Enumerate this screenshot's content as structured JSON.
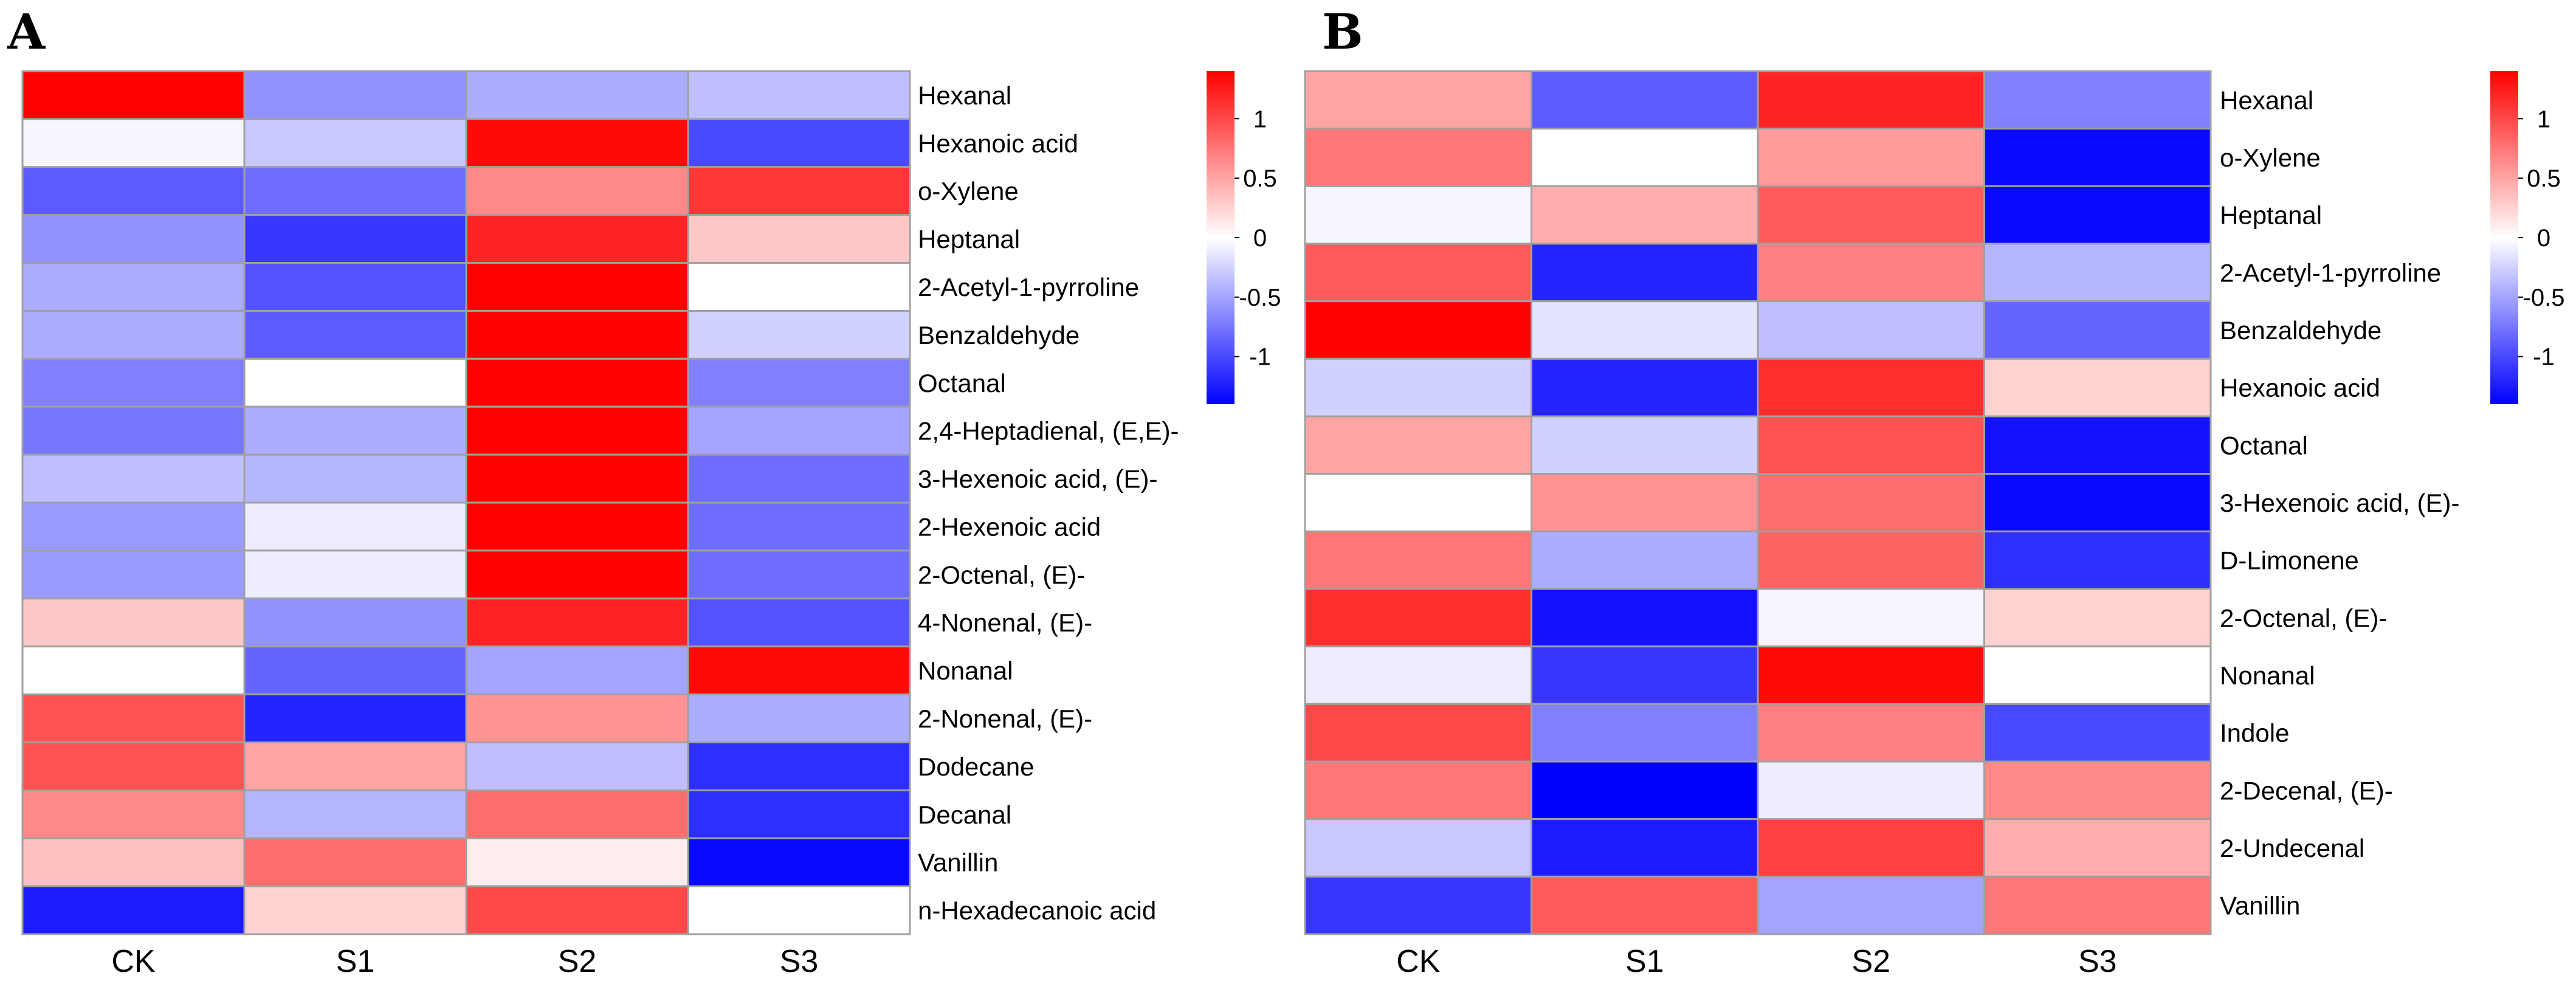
{
  "chart_data": [
    {
      "type": "heatmap",
      "panel_label": "A",
      "columns": [
        "CK",
        "S1",
        "S2",
        "S3"
      ],
      "rows": [
        "Hexanal",
        "Hexanoic acid",
        "o-Xylene",
        "Heptanal",
        "2-Acetyl-1-pyrroline",
        "Benzaldehyde",
        "Octanal",
        "2,4-Heptadienal, (E,E)-",
        "3-Hexenoic acid, (E)-",
        "2-Hexenoic acid",
        "2-Octenal, (E)-",
        "4-Nonenal, (E)-",
        "Nonanal",
        "2-Nonenal, (E)-",
        "Dodecane",
        "Decanal",
        "Vanillin",
        "n-Hexadecanoic acid"
      ],
      "values": [
        [
          1.45,
          -0.6,
          -0.45,
          -0.35
        ],
        [
          -0.05,
          -0.3,
          1.35,
          -1.0
        ],
        [
          -0.9,
          -0.8,
          0.65,
          1.1
        ],
        [
          -0.6,
          -1.1,
          1.2,
          0.3
        ],
        [
          -0.45,
          -0.95,
          1.4,
          0.0
        ],
        [
          -0.45,
          -0.9,
          1.4,
          -0.25
        ],
        [
          -0.7,
          0.0,
          1.4,
          -0.7
        ],
        [
          -0.75,
          -0.45,
          1.4,
          -0.5
        ],
        [
          -0.35,
          -0.4,
          1.4,
          -0.8
        ],
        [
          -0.55,
          -0.1,
          1.4,
          -0.8
        ],
        [
          -0.55,
          -0.1,
          1.4,
          -0.8
        ],
        [
          0.3,
          -0.6,
          1.2,
          -0.95
        ],
        [
          0.0,
          -0.85,
          -0.5,
          1.35
        ],
        [
          0.95,
          -1.2,
          0.6,
          -0.45
        ],
        [
          0.95,
          0.5,
          -0.35,
          -1.15
        ],
        [
          0.65,
          -0.4,
          0.8,
          -1.15
        ],
        [
          0.35,
          0.8,
          0.1,
          -1.35
        ],
        [
          -1.25,
          0.25,
          1.0,
          0.0
        ]
      ],
      "colorbar": {
        "ticks": [
          1,
          0.5,
          0,
          -0.5,
          -1
        ],
        "range": [
          -1.4,
          1.4
        ]
      },
      "colors": {
        "low": "#0000ff",
        "mid": "#ffffff",
        "high": "#ff0000"
      }
    },
    {
      "type": "heatmap",
      "panel_label": "B",
      "columns": [
        "CK",
        "S1",
        "S2",
        "S3"
      ],
      "rows": [
        "Hexanal",
        "o-Xylene",
        "Heptanal",
        "2-Acetyl-1-pyrroline",
        "Benzaldehyde",
        "Hexanoic acid",
        "Octanal",
        "3-Hexenoic acid, (E)-",
        "D-Limonene",
        "2-Octenal, (E)-",
        "Nonanal",
        "Indole",
        "2-Decenal, (E)-",
        "2-Undecenal",
        "Vanillin"
      ],
      "values": [
        [
          0.5,
          -0.9,
          1.2,
          -0.7
        ],
        [
          0.75,
          0.0,
          0.55,
          -1.35
        ],
        [
          -0.05,
          0.45,
          0.9,
          -1.35
        ],
        [
          0.9,
          -1.2,
          0.7,
          -0.4
        ],
        [
          1.4,
          -0.15,
          -0.35,
          -0.85
        ],
        [
          -0.25,
          -1.2,
          1.15,
          0.25
        ],
        [
          0.5,
          -0.25,
          0.95,
          -1.3
        ],
        [
          0.0,
          0.6,
          0.8,
          -1.35
        ],
        [
          0.75,
          -0.45,
          0.85,
          -1.15
        ],
        [
          1.15,
          -1.3,
          -0.05,
          0.25
        ],
        [
          -0.1,
          -1.1,
          1.35,
          0.0
        ],
        [
          1.0,
          -0.7,
          0.7,
          -1.0
        ],
        [
          0.75,
          -1.4,
          -0.1,
          0.65
        ],
        [
          -0.3,
          -1.25,
          1.05,
          0.45
        ],
        [
          -1.1,
          0.9,
          -0.5,
          0.75
        ]
      ],
      "colorbar": {
        "ticks": [
          1,
          0.5,
          0,
          -0.5,
          -1
        ],
        "range": [
          -1.4,
          1.4
        ]
      },
      "colors": {
        "low": "#0000ff",
        "mid": "#ffffff",
        "high": "#ff0000"
      }
    }
  ]
}
